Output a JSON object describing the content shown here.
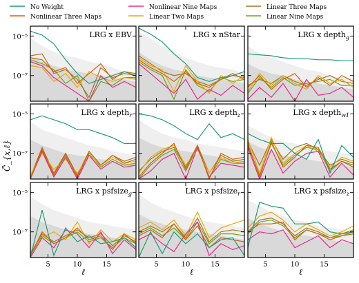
{
  "colors": {
    "no_weight": "#1b9e77",
    "nonlinear_three": "#d95f02",
    "nonlinear_nine": "#e7298a",
    "linear_two": "#e6ab02",
    "linear_three": "#a6761d",
    "linear_nine": "#66a61e",
    "band_light": "#efefef",
    "band_dark": "#d9d9d9"
  },
  "chart_data": {
    "type": "line",
    "ylabel": "C̃_{x,ℓ}",
    "xlabel": "ℓ",
    "xlim": [
      2,
      20
    ],
    "ylim_log10": [
      -8.3,
      -4.5
    ],
    "yscale": "log",
    "yticks": [
      "10⁻⁵",
      "10⁻⁷"
    ],
    "ytick_values": [
      -5,
      -7
    ],
    "xticks": [
      "5",
      "10",
      "15"
    ],
    "xtick_values": [
      5,
      10,
      15
    ],
    "x": [
      2,
      4,
      6,
      8,
      10,
      12,
      14,
      16,
      18,
      20
    ],
    "legend": [
      {
        "key": "no_weight",
        "label": "No Weight"
      },
      {
        "key": "nonlinear_three",
        "label": "Nonlinear Three Maps"
      },
      {
        "key": "nonlinear_nine",
        "label": "Nonlinear Nine Maps"
      },
      {
        "key": "linear_two",
        "label": "Linear Two Maps"
      },
      {
        "key": "linear_three",
        "label": "Linear Three Maps"
      },
      {
        "key": "linear_nine",
        "label": "Linear Nine Maps"
      }
    ],
    "panels": [
      {
        "title": "LRG x EBV",
        "band_outer_log10": [
          -5.1,
          -5.5,
          -5.8,
          -6.0,
          -6.1,
          -6.3,
          -6.4,
          -6.6,
          -6.8,
          -7.0
        ],
        "band_inner_log10": [
          -6.0,
          -6.3,
          -6.5,
          -6.7,
          -6.8,
          -6.9,
          -7.0,
          -7.1,
          -7.2,
          -7.3
        ],
        "series_log10": {
          "no_weight": [
            -4.75,
            -4.95,
            -5.4,
            -6.2,
            -6.9,
            -7.4,
            -7.2,
            -7.0,
            -6.8,
            -7.0
          ],
          "nonlinear_three": [
            -6.1,
            -6.2,
            -6.8,
            -6.6,
            -7.4,
            -6.9,
            -6.4,
            -7.2,
            -6.8,
            -6.9
          ],
          "nonlinear_nine": [
            -6.3,
            -6.5,
            -7.1,
            -7.5,
            -7.9,
            -8.3,
            -7.0,
            -7.6,
            -7.3,
            -7.6
          ],
          "linear_two": [
            -6.5,
            -6.6,
            -7.3,
            -6.9,
            -7.6,
            -6.8,
            -7.1,
            -7.3,
            -7.1,
            -7.2
          ],
          "linear_three": [
            -6.0,
            -5.9,
            -6.9,
            -6.7,
            -7.2,
            -8.1,
            -6.6,
            -7.1,
            -6.9,
            -7.0
          ],
          "linear_nine": [
            -6.2,
            -6.4,
            -6.7,
            -7.4,
            -7.0,
            -8.3,
            -7.3,
            -7.5,
            -7.1,
            -7.1
          ]
        }
      },
      {
        "title": "LRG x nStar",
        "band_outer_log10": [
          -4.8,
          -5.1,
          -5.5,
          -5.8,
          -6.1,
          -6.3,
          -6.5,
          -6.6,
          -6.7,
          -6.9
        ],
        "band_inner_log10": [
          -5.8,
          -6.2,
          -6.5,
          -6.7,
          -6.8,
          -7.0,
          -7.1,
          -7.2,
          -7.3,
          -7.4
        ],
        "series_log10": {
          "no_weight": [
            -4.6,
            -4.9,
            -5.3,
            -5.9,
            -6.4,
            -7.1,
            -7.3,
            -7.1,
            -7.0,
            -6.8
          ],
          "nonlinear_three": [
            -6.2,
            -6.6,
            -6.9,
            -7.3,
            -6.8,
            -7.4,
            -7.6,
            -7.2,
            -6.9,
            -7.2
          ],
          "nonlinear_nine": [
            -6.4,
            -6.9,
            -7.4,
            -7.9,
            -7.2,
            -8.2,
            -7.7,
            -8.0,
            -7.5,
            -7.9
          ],
          "linear_two": [
            -6.1,
            -6.5,
            -6.7,
            -7.8,
            -6.5,
            -7.3,
            -7.9,
            -7.0,
            -7.4,
            -7.0
          ],
          "linear_three": [
            -6.0,
            -6.4,
            -6.8,
            -7.0,
            -6.9,
            -7.3,
            -7.5,
            -7.2,
            -7.0,
            -7.1
          ],
          "linear_nine": [
            -6.3,
            -6.7,
            -7.0,
            -8.2,
            -6.7,
            -7.5,
            -7.8,
            -7.1,
            -7.3,
            -7.2
          ]
        }
      },
      {
        "title": "LRG x depth_g",
        "band_outer_log10": [
          -5.5,
          -5.9,
          -6.1,
          -6.3,
          -6.5,
          -6.7,
          -6.8,
          -7.0,
          -7.1,
          -7.2
        ],
        "band_inner_log10": [
          -6.4,
          -6.7,
          -6.9,
          -7.0,
          -7.2,
          -7.3,
          -7.4,
          -7.5,
          -7.6,
          -7.7
        ],
        "series_log10": {
          "no_weight": [
            -5.9,
            -5.95,
            -6.0,
            -6.1,
            -6.15,
            -6.15,
            -6.2,
            -6.2,
            -6.25,
            -6.25
          ],
          "nonlinear_three": [
            -7.6,
            -7.0,
            -7.7,
            -7.2,
            -6.9,
            -7.6,
            -7.1,
            -7.5,
            -7.0,
            -7.3
          ],
          "nonlinear_nine": [
            -8.2,
            -7.6,
            -8.1,
            -7.4,
            -8.3,
            -7.2,
            -8.0,
            -7.9,
            -7.6,
            -8.1
          ],
          "linear_two": [
            -7.8,
            -6.9,
            -7.5,
            -7.0,
            -7.4,
            -7.7,
            -7.0,
            -7.4,
            -7.2,
            -7.6
          ],
          "linear_three": [
            -7.5,
            -7.2,
            -7.4,
            -7.0,
            -7.3,
            -7.5,
            -7.2,
            -7.0,
            -7.3,
            -7.4
          ],
          "linear_nine": [
            -7.9,
            -7.1,
            -7.6,
            -7.1,
            -7.5,
            -7.4,
            -7.3,
            -7.2,
            -7.5,
            -7.5
          ]
        }
      },
      {
        "title": "LRG x depth_r",
        "band_outer_log10": [
          -5.4,
          -5.8,
          -6.0,
          -6.2,
          -6.4,
          -6.6,
          -6.7,
          -6.9,
          -7.0,
          -7.1
        ],
        "band_inner_log10": [
          -6.3,
          -6.6,
          -6.8,
          -7.0,
          -7.1,
          -7.2,
          -7.3,
          -7.4,
          -7.5,
          -7.6
        ],
        "series_log10": {
          "no_weight": [
            -5.3,
            -5.1,
            -5.3,
            -5.5,
            -5.8,
            -5.8,
            -6.0,
            -6.2,
            -6.5,
            -6.5
          ],
          "nonlinear_three": [
            -8.3,
            -6.8,
            -8.1,
            -7.0,
            -8.2,
            -6.9,
            -7.6,
            -7.1,
            -7.5,
            -7.3
          ],
          "nonlinear_nine": [
            -8.3,
            -6.9,
            -8.2,
            -7.2,
            -8.3,
            -7.1,
            -7.8,
            -7.4,
            -7.7,
            -7.6
          ],
          "linear_two": [
            -8.1,
            -7.0,
            -7.8,
            -7.3,
            -8.0,
            -7.1,
            -7.6,
            -7.2,
            -7.5,
            -7.4
          ],
          "linear_three": [
            -8.2,
            -6.7,
            -8.0,
            -7.0,
            -8.1,
            -6.9,
            -7.6,
            -7.1,
            -7.4,
            -7.2
          ],
          "linear_nine": [
            -8.3,
            -6.8,
            -8.1,
            -7.1,
            -8.2,
            -7.0,
            -7.7,
            -7.3,
            -7.6,
            -7.5
          ]
        }
      },
      {
        "title": "LRG x depth_z",
        "band_outer_log10": [
          -5.3,
          -5.7,
          -6.0,
          -6.2,
          -6.3,
          -6.5,
          -6.6,
          -6.7,
          -6.8,
          -6.9
        ],
        "band_inner_log10": [
          -6.2,
          -6.5,
          -6.7,
          -6.8,
          -6.9,
          -7.0,
          -7.1,
          -7.2,
          -7.3,
          -7.4
        ],
        "series_log10": {
          "no_weight": [
            -5.0,
            -5.1,
            -5.3,
            -5.6,
            -6.0,
            -6.3,
            -5.5,
            -6.2,
            -6.0,
            -6.3
          ],
          "nonlinear_three": [
            -8.2,
            -7.5,
            -7.0,
            -6.5,
            -7.8,
            -6.6,
            -8.3,
            -7.0,
            -7.3,
            -7.2
          ],
          "nonlinear_nine": [
            -8.3,
            -7.9,
            -7.3,
            -7.0,
            -8.3,
            -6.7,
            -8.2,
            -7.5,
            -7.6,
            -7.7
          ],
          "linear_two": [
            -8.0,
            -7.2,
            -6.8,
            -6.6,
            -7.6,
            -6.8,
            -8.0,
            -7.2,
            -7.5,
            -7.4
          ],
          "linear_three": [
            -7.9,
            -7.3,
            -6.9,
            -6.7,
            -7.7,
            -6.6,
            -8.0,
            -7.1,
            -7.4,
            -7.3
          ],
          "linear_nine": [
            -8.3,
            -7.6,
            -7.1,
            -6.8,
            -7.9,
            -6.7,
            -8.2,
            -7.3,
            -7.5,
            -7.5
          ]
        }
      },
      {
        "title": "LRG x depth_w1",
        "band_outer_log10": [
          -5.6,
          -5.9,
          -6.2,
          -6.4,
          -6.5,
          -6.7,
          -6.8,
          -6.9,
          -7.0,
          -7.1
        ],
        "band_inner_log10": [
          -6.4,
          -6.7,
          -6.9,
          -7.1,
          -7.2,
          -7.3,
          -7.4,
          -7.5,
          -7.6,
          -7.7
        ],
        "series_log10": {
          "no_weight": [
            -6.0,
            -6.3,
            -6.5,
            -6.5,
            -7.0,
            -7.3,
            -6.3,
            -8.0,
            -6.6,
            -7.2
          ],
          "nonlinear_three": [
            -6.5,
            -8.2,
            -6.4,
            -7.7,
            -7.2,
            -6.6,
            -6.7,
            -7.8,
            -7.4,
            -7.7
          ],
          "nonlinear_nine": [
            -6.7,
            -8.3,
            -6.8,
            -8.0,
            -7.4,
            -7.0,
            -6.9,
            -8.2,
            -7.5,
            -8.1
          ],
          "linear_two": [
            -6.3,
            -8.0,
            -6.2,
            -7.5,
            -7.0,
            -6.6,
            -6.9,
            -7.7,
            -7.2,
            -7.4
          ],
          "linear_three": [
            -6.4,
            -7.6,
            -6.3,
            -7.3,
            -6.7,
            -6.5,
            -6.8,
            -7.6,
            -7.3,
            -7.5
          ],
          "linear_nine": [
            -6.6,
            -8.1,
            -6.5,
            -7.6,
            -7.1,
            -6.7,
            -6.8,
            -7.9,
            -7.4,
            -7.6
          ]
        }
      },
      {
        "title": "LRG x psfsize_g",
        "band_outer_log10": [
          -5.2,
          -5.6,
          -5.9,
          -6.1,
          -6.3,
          -6.5,
          -6.6,
          -6.7,
          -6.8,
          -6.9
        ],
        "band_inner_log10": [
          -6.2,
          -6.5,
          -6.7,
          -6.9,
          -7.0,
          -7.1,
          -7.2,
          -7.3,
          -7.4,
          -7.5
        ],
        "series_log10": {
          "no_weight": [
            -8.3,
            -5.9,
            -8.2,
            -6.8,
            -7.5,
            -7.2,
            -7.6,
            -7.5,
            -7.3,
            -7.8
          ],
          "nonlinear_three": [
            -8.2,
            -7.0,
            -7.6,
            -7.3,
            -6.8,
            -7.4,
            -7.2,
            -7.9,
            -7.1,
            -7.6
          ],
          "nonlinear_nine": [
            -8.3,
            -7.3,
            -7.8,
            -6.9,
            -7.1,
            -7.8,
            -7.0,
            -8.1,
            -7.4,
            -7.9
          ],
          "linear_two": [
            -8.0,
            -7.3,
            -7.0,
            -7.4,
            -6.5,
            -7.6,
            -6.9,
            -7.5,
            -7.1,
            -7.4
          ],
          "linear_three": [
            -8.1,
            -7.1,
            -7.5,
            -7.2,
            -6.9,
            -7.3,
            -7.1,
            -7.7,
            -7.2,
            -7.5
          ],
          "linear_nine": [
            -8.2,
            -7.2,
            -7.6,
            -7.3,
            -7.0,
            -7.5,
            -7.3,
            -7.8,
            -7.3,
            -7.6
          ]
        }
      },
      {
        "title": "LRG x psfsize_r",
        "band_outer_log10": [
          -5.1,
          -5.5,
          -5.8,
          -6.0,
          -6.2,
          -6.4,
          -6.5,
          -6.6,
          -6.7,
          -6.8
        ],
        "band_inner_log10": [
          -6.1,
          -6.4,
          -6.6,
          -6.8,
          -6.9,
          -7.0,
          -7.1,
          -7.2,
          -7.3,
          -7.4
        ],
        "series_log10": {
          "no_weight": [
            -8.3,
            -7.0,
            -8.1,
            -7.0,
            -7.6,
            -7.1,
            -7.8,
            -7.4,
            -7.3,
            -8.2
          ],
          "nonlinear_three": [
            -7.2,
            -6.9,
            -7.3,
            -6.6,
            -7.4,
            -6.7,
            -7.8,
            -7.3,
            -7.4,
            -7.5
          ],
          "nonlinear_nine": [
            -7.4,
            -7.1,
            -7.6,
            -8.0,
            -7.1,
            -6.5,
            -8.2,
            -7.6,
            -7.9,
            -7.7
          ],
          "linear_two": [
            -6.8,
            -6.5,
            -6.9,
            -6.4,
            -7.2,
            -6.0,
            -7.3,
            -6.8,
            -6.6,
            -6.4
          ],
          "linear_three": [
            -7.0,
            -6.7,
            -7.0,
            -6.6,
            -7.3,
            -6.3,
            -7.5,
            -7.0,
            -6.9,
            -7.0
          ],
          "linear_nine": [
            -7.1,
            -6.8,
            -7.2,
            -6.8,
            -7.4,
            -6.5,
            -7.6,
            -7.1,
            -7.1,
            -7.2
          ]
        }
      },
      {
        "title": "LRG x psfsize_z",
        "band_outer_log10": [
          -5.4,
          -5.7,
          -6.0,
          -6.2,
          -6.4,
          -6.5,
          -6.7,
          -6.8,
          -6.9,
          -7.0
        ],
        "band_inner_log10": [
          -6.3,
          -6.6,
          -6.8,
          -7.0,
          -7.1,
          -7.2,
          -7.3,
          -7.4,
          -7.5,
          -7.6
        ],
        "series_log10": {
          "no_weight": [
            -7.8,
            -5.5,
            -5.7,
            -5.8,
            -6.6,
            -6.6,
            -6.5,
            -7.0,
            -7.1,
            -7.0
          ],
          "nonlinear_three": [
            -7.0,
            -6.6,
            -6.6,
            -6.5,
            -7.4,
            -6.9,
            -7.1,
            -7.4,
            -7.2,
            -7.1
          ],
          "nonlinear_nine": [
            -7.4,
            -7.0,
            -7.1,
            -6.9,
            -7.8,
            -7.5,
            -7.2,
            -7.8,
            -7.4,
            -7.6
          ],
          "linear_two": [
            -6.8,
            -6.2,
            -6.0,
            -6.4,
            -7.0,
            -6.6,
            -6.9,
            -7.2,
            -7.0,
            -6.7
          ],
          "linear_three": [
            -7.0,
            -6.4,
            -6.3,
            -6.6,
            -7.2,
            -6.8,
            -7.0,
            -7.3,
            -7.1,
            -6.9
          ],
          "linear_nine": [
            -7.1,
            -6.5,
            -6.4,
            -6.7,
            -7.3,
            -6.9,
            -7.1,
            -7.3,
            -7.2,
            -7.0
          ]
        }
      }
    ]
  }
}
